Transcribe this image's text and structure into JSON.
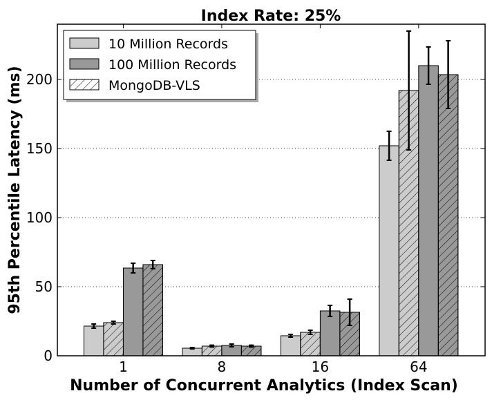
{
  "chart_data": {
    "type": "bar",
    "title": "Index Rate: 25%",
    "xlabel": "Number of Concurrent Analytics (Index Scan)",
    "ylabel": "95th Percentile Latency (ms)",
    "categories": [
      "1",
      "8",
      "16",
      "64"
    ],
    "ylim": [
      0,
      240
    ],
    "yticks": [
      0,
      50,
      100,
      150,
      200
    ],
    "grid": "y-dotted",
    "legend_position": "top-left",
    "legend": [
      {
        "label": "10 Million Records",
        "fill": "#cccccc",
        "hatch": false
      },
      {
        "label": "100 Million Records",
        "fill": "#999999",
        "hatch": false
      },
      {
        "label": "MongoDB-VLS",
        "fill": "#ffffff",
        "hatch": true
      }
    ],
    "series": [
      {
        "values": [
          21.5,
          5.5,
          14.5,
          152
        ],
        "errors": [
          1.5,
          0.5,
          1,
          10.5
        ],
        "fill": "#cccccc",
        "hatch": false
      },
      {
        "values": [
          24,
          7,
          17,
          192
        ],
        "errors": [
          1,
          0.7,
          1.5,
          43
        ],
        "fill": "#cccccc",
        "hatch": true
      },
      {
        "values": [
          63.5,
          7.5,
          32.5,
          210
        ],
        "errors": [
          3.5,
          1,
          4,
          13.5
        ],
        "fill": "#999999",
        "hatch": false
      },
      {
        "values": [
          66,
          7,
          31.5,
          203.5
        ],
        "errors": [
          3,
          0.7,
          9.5,
          24.5
        ],
        "fill": "#999999",
        "hatch": true
      }
    ]
  }
}
